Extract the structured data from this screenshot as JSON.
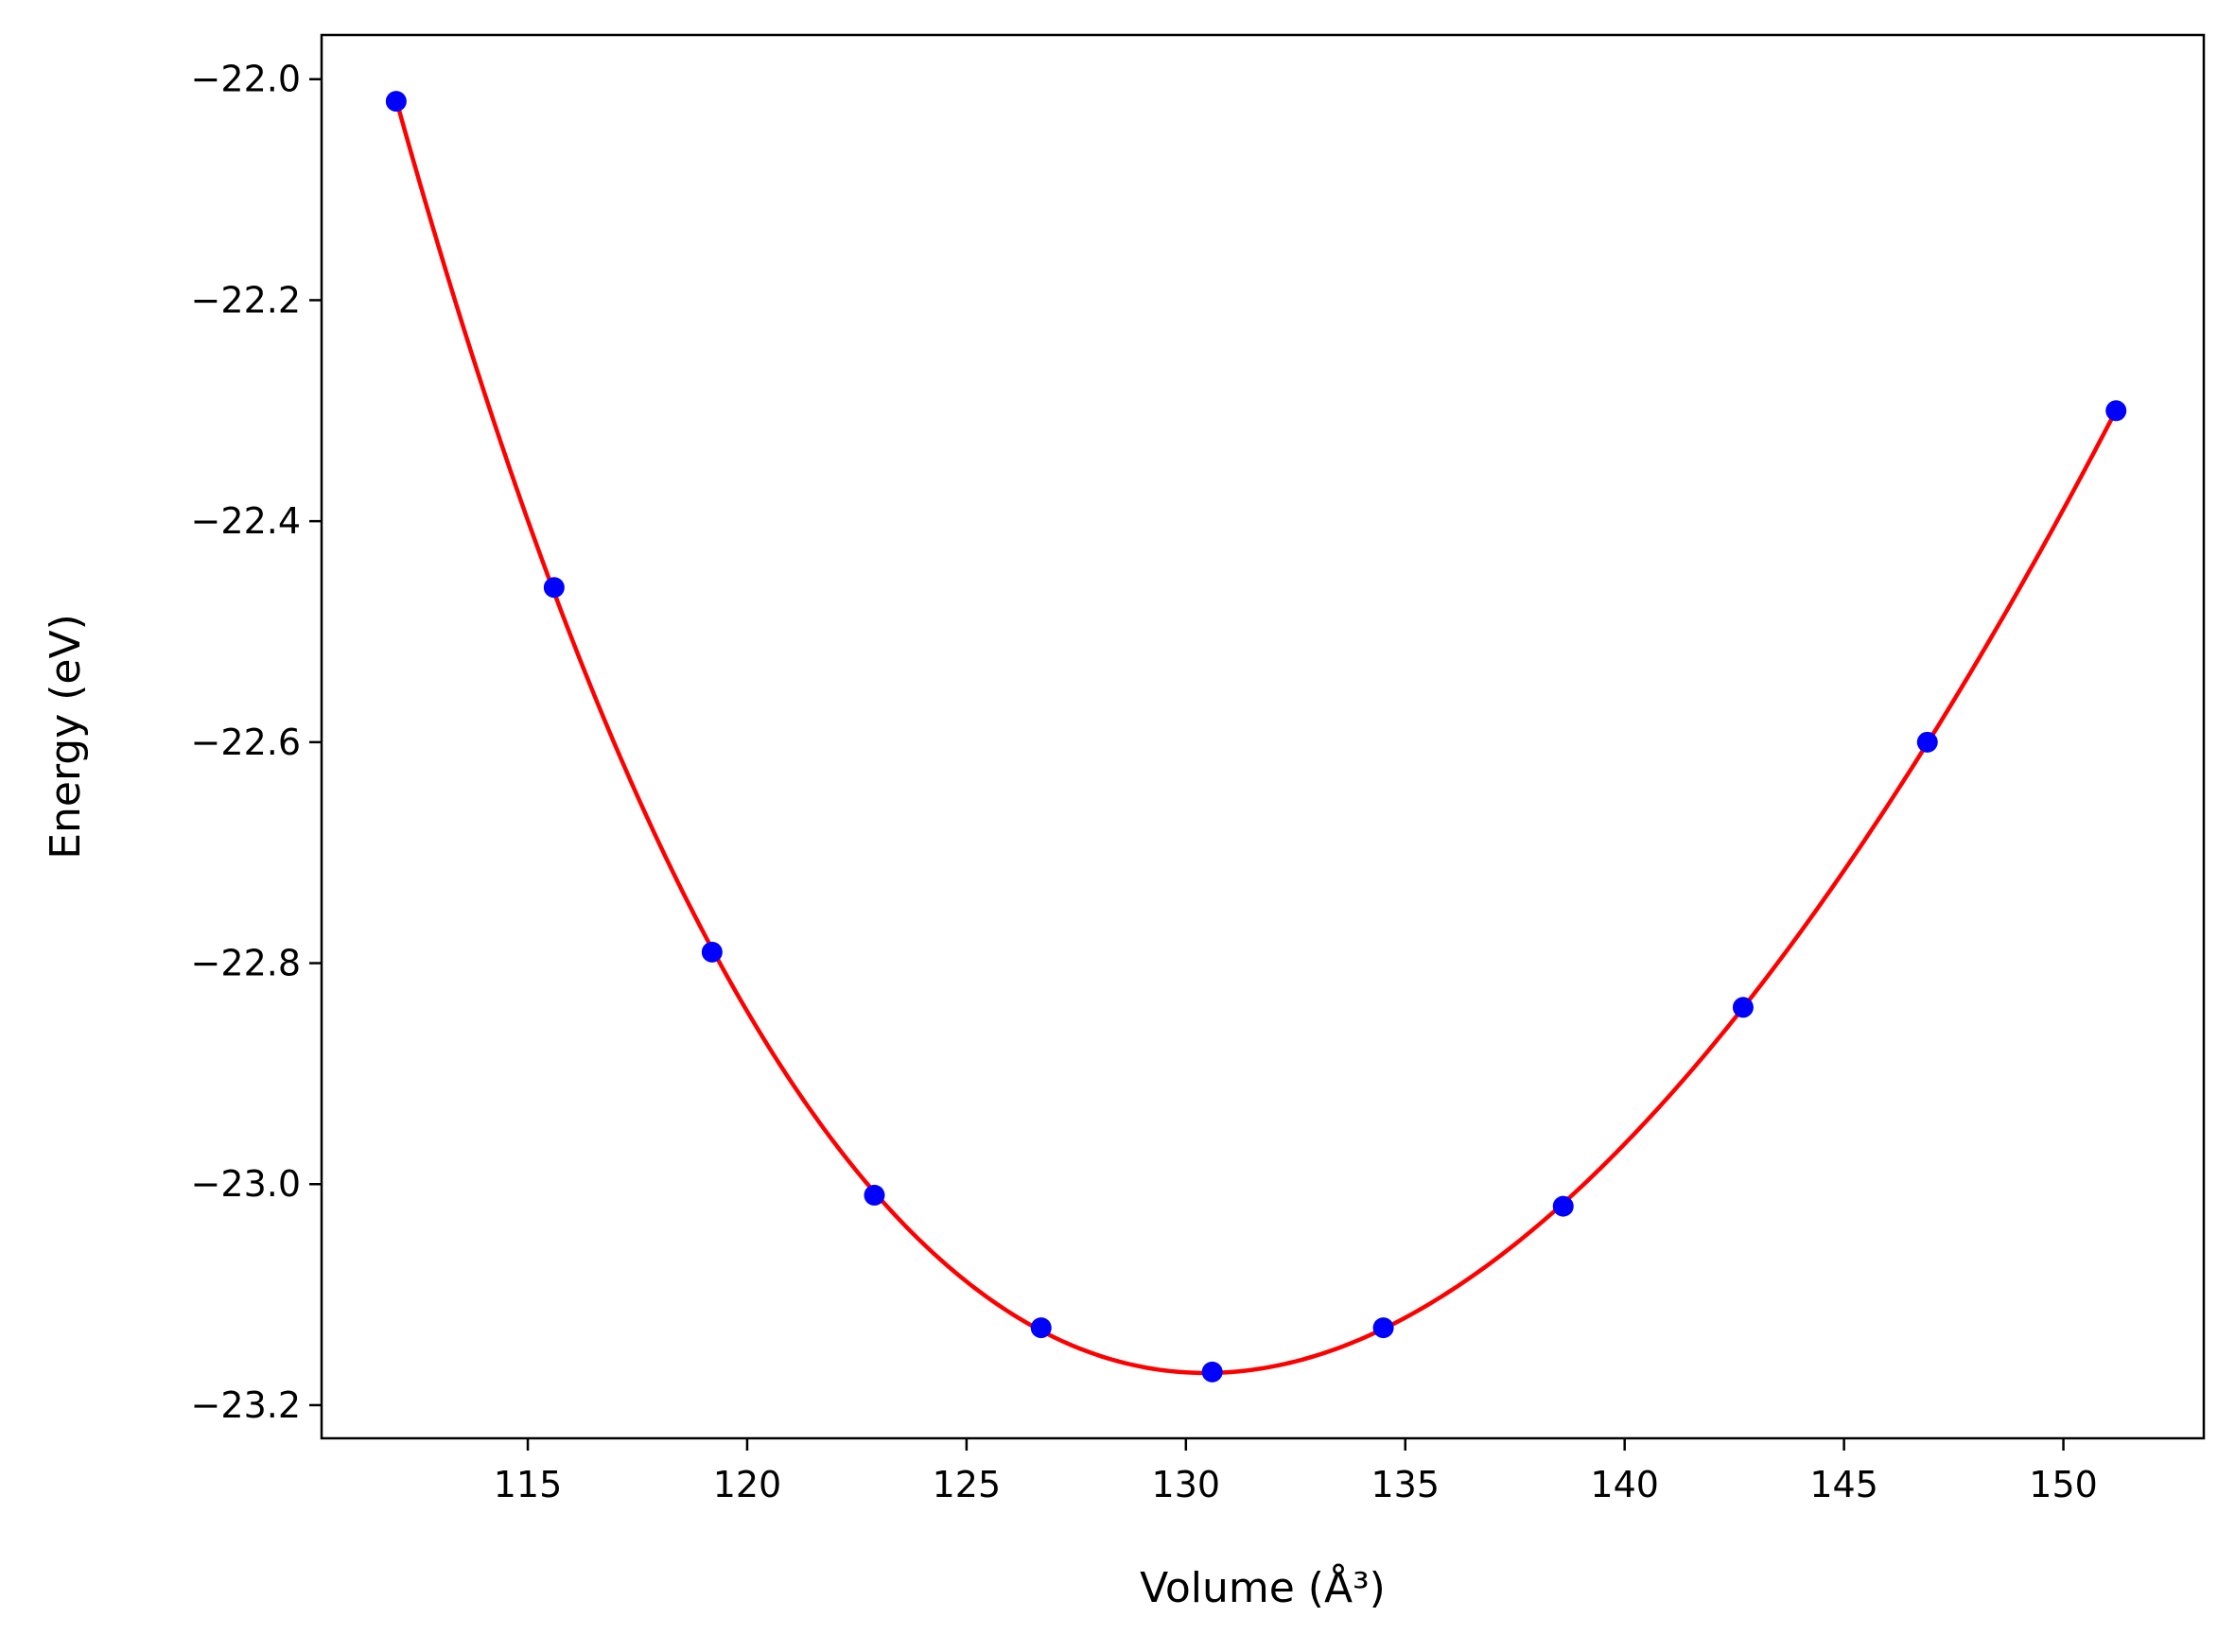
{
  "chart_data": {
    "type": "scatter",
    "title": "",
    "xlabel": "Volume (Å³)",
    "ylabel": "Energy (eV)",
    "xlim": [
      110.3,
      153.2
    ],
    "ylim": [
      -23.23,
      -21.96
    ],
    "x_ticks": [
      115,
      120,
      125,
      130,
      135,
      140,
      145,
      150
    ],
    "y_ticks": [
      -22.0,
      -22.2,
      -22.4,
      -22.6,
      -22.8,
      -23.0,
      -23.2
    ],
    "x_tick_labels": [
      "115",
      "120",
      "125",
      "130",
      "135",
      "140",
      "145",
      "150"
    ],
    "y_tick_labels": [
      "−22.0",
      "−22.2",
      "−22.4",
      "−22.6",
      "−22.8",
      "−23.0",
      "−23.2"
    ],
    "grid": false,
    "legend": "none",
    "series": [
      {
        "kind": "markers",
        "color": "#0000ff",
        "x": [
          112.0,
          115.6,
          119.2,
          122.9,
          126.7,
          130.6,
          134.5,
          138.6,
          142.7,
          146.9,
          151.2
        ],
        "y": [
          -22.02,
          -22.46,
          -22.79,
          -23.01,
          -23.13,
          -23.17,
          -23.13,
          -23.02,
          -22.84,
          -22.6,
          -22.3
        ]
      },
      {
        "kind": "fit-line",
        "color": "#ff0000",
        "x": [
          112.0,
          115.6,
          119.2,
          122.9,
          126.7,
          130.6,
          134.5,
          138.6,
          142.7,
          146.9,
          151.2
        ],
        "y": [
          -22.02,
          -22.46,
          -22.79,
          -23.01,
          -23.13,
          -23.17,
          -23.13,
          -23.02,
          -22.84,
          -22.6,
          -22.3
        ]
      }
    ]
  }
}
